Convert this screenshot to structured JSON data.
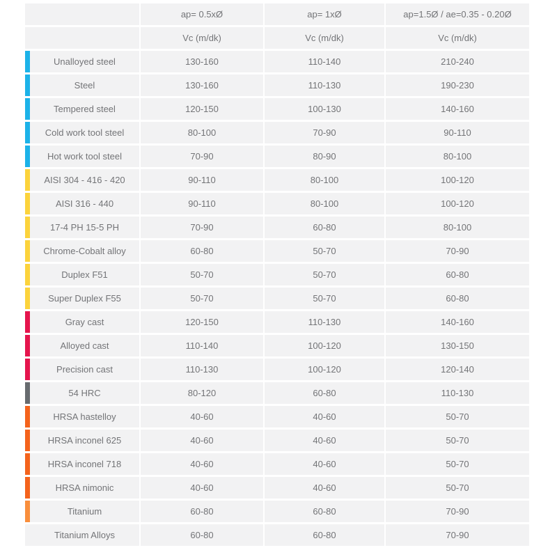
{
  "chart_data": {
    "type": "table",
    "column_headers": [
      "ap= 0.5xØ",
      "ap= 1xØ",
      "ap=1.5Ø  / ae=0.35 - 0.20Ø"
    ],
    "unit_headers": [
      "Vc (m/dk)",
      "Vc (m/dk)",
      "Vc (m/dk)"
    ],
    "value_unit": "Vc (m/dk)",
    "group_colors": {
      "steel": "#1cb2e8",
      "stainless": "#fcd33c",
      "cast": "#e5154d",
      "hardened": "#686b6f",
      "hrsa": "#f4631c",
      "titanium": "#f98e3c"
    },
    "cell_background": "#f2f2f3",
    "text_color": "#737477",
    "rows": [
      {
        "material": "Unalloyed steel",
        "group": "steel",
        "values": [
          "130-160",
          "110-140",
          "210-240"
        ]
      },
      {
        "material": "Steel",
        "group": "steel",
        "values": [
          "130-160",
          "110-130",
          "190-230"
        ]
      },
      {
        "material": "Tempered steel",
        "group": "steel",
        "values": [
          "120-150",
          "100-130",
          "140-160"
        ]
      },
      {
        "material": "Cold work tool steel",
        "group": "steel",
        "values": [
          "80-100",
          "70-90",
          "90-110"
        ]
      },
      {
        "material": "Hot work tool steel",
        "group": "steel",
        "values": [
          "70-90",
          "80-90",
          "80-100"
        ]
      },
      {
        "material": "AISI 304 - 416 - 420",
        "group": "stainless",
        "values": [
          "90-110",
          "80-100",
          "100-120"
        ]
      },
      {
        "material": "AISI 316 - 440",
        "group": "stainless",
        "values": [
          "90-110",
          "80-100",
          "100-120"
        ]
      },
      {
        "material": "17-4 PH 15-5 PH",
        "group": "stainless",
        "values": [
          "70-90",
          "60-80",
          "80-100"
        ]
      },
      {
        "material": "Chrome-Cobalt alloy",
        "group": "stainless",
        "values": [
          "60-80",
          "50-70",
          "70-90"
        ]
      },
      {
        "material": "Duplex F51",
        "group": "stainless",
        "values": [
          "50-70",
          "50-70",
          "60-80"
        ]
      },
      {
        "material": "Super Duplex F55",
        "group": "stainless",
        "values": [
          "50-70",
          "50-70",
          "60-80"
        ]
      },
      {
        "material": "Gray cast",
        "group": "cast",
        "values": [
          "120-150",
          "110-130",
          "140-160"
        ]
      },
      {
        "material": "Alloyed cast",
        "group": "cast",
        "values": [
          "110-140",
          "100-120",
          "130-150"
        ]
      },
      {
        "material": "Precision cast",
        "group": "cast",
        "values": [
          "110-130",
          "100-120",
          "120-140"
        ]
      },
      {
        "material": "54 HRC",
        "group": "hardened",
        "values": [
          "80-120",
          "60-80",
          "110-130"
        ]
      },
      {
        "material": "HRSA hastelloy",
        "group": "hrsa",
        "values": [
          "40-60",
          "40-60",
          "50-70"
        ]
      },
      {
        "material": "HRSA inconel 625",
        "group": "hrsa",
        "values": [
          "40-60",
          "40-60",
          "50-70"
        ]
      },
      {
        "material": "HRSA inconel 718",
        "group": "hrsa",
        "values": [
          "40-60",
          "40-60",
          "50-70"
        ]
      },
      {
        "material": "HRSA nimonic",
        "group": "hrsa",
        "values": [
          "40-60",
          "40-60",
          "50-70"
        ]
      },
      {
        "material": "Titanium",
        "group": "titanium",
        "values": [
          "60-80",
          "60-80",
          "70-90"
        ]
      },
      {
        "material": "Titanium Alloys",
        "group": null,
        "values": [
          "60-80",
          "60-80",
          "70-90"
        ]
      }
    ]
  }
}
